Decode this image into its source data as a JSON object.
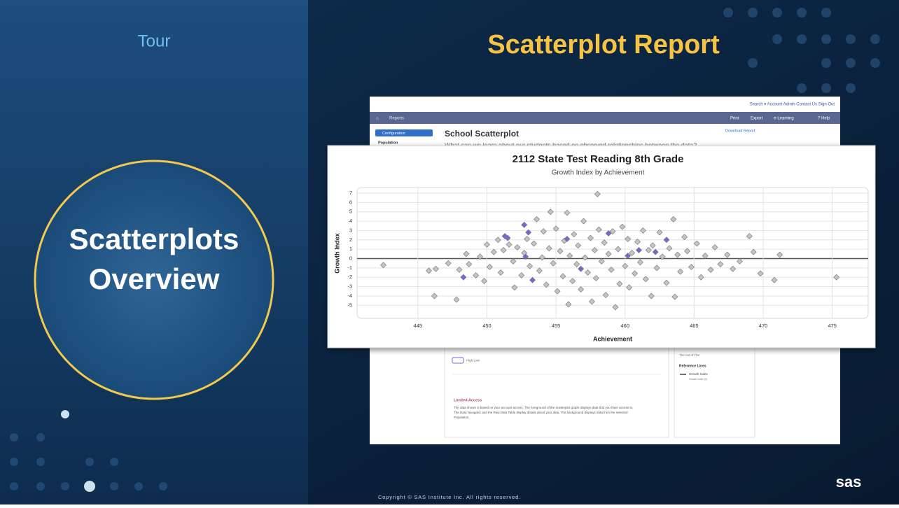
{
  "slide": {
    "section": "Tour",
    "title": "Scatterplot Report",
    "circle_text": [
      "Scatterplots",
      "Overview"
    ],
    "copyright": "Copyright © SAS Institute Inc. All rights reserved.",
    "logo": "sas"
  },
  "screenshot": {
    "top_links": "Search ▾  Account  Admin  Contact Us  Sign Out",
    "nav_left": "Reports",
    "nav_right": [
      "Print",
      "Export",
      "e-Learning",
      "? Help"
    ],
    "sidebar_button": "Configuration",
    "sidebar_item": "Population",
    "page_title": "School Scatterplot",
    "download": "Download Report",
    "question": "What can we learn about our students based on observed relationships between the data?",
    "legend_text": "High Low",
    "limited_access_title": "Limited Access",
    "limited_access_text": [
      "The data shown is based on your account access. The foreground of the scatterplot graph displays data that you have access to.",
      "The Data Navigator and the Raw Data Table display details about your data. The background displays data from the selected",
      "Population."
    ],
    "side_note": "The out of The",
    "reference_title": "Reference Lines",
    "reference_item": "Growth Index",
    "reference_sub": "Growth Index (0)"
  },
  "chart_data": {
    "type": "scatter",
    "title": "2112 State Test Reading 8th Grade",
    "subtitle": "Growth Index by Achievement",
    "x_label": "Achievement",
    "y_label": "Growth Index",
    "xlim": [
      440.6,
      477.6
    ],
    "ylim": [
      -6.4,
      7.6
    ],
    "xticks": [
      445,
      450,
      455,
      460,
      465,
      470,
      475
    ],
    "yticks": [
      -5,
      -4,
      -3,
      -2,
      -1,
      0,
      1,
      2,
      3,
      4,
      5,
      6,
      7
    ],
    "grid": true,
    "series": [
      {
        "color": "#c4c4c4",
        "x": [
          442.5,
          445.8,
          446.3,
          446.2,
          447.8,
          447.2,
          448,
          448.5,
          448.7,
          449.2,
          449.5,
          449.8,
          450,
          450.2,
          450.5,
          450.8,
          451,
          451.2,
          451.6,
          451.9,
          452,
          452.2,
          452.5,
          452.7,
          452.9,
          453.1,
          453.4,
          453.6,
          453.8,
          454,
          454.1,
          454.3,
          454.5,
          454.6,
          454.8,
          455,
          455.1,
          455.3,
          455.5,
          455.6,
          455.8,
          455.9,
          456,
          456.2,
          456.3,
          456.5,
          456.6,
          456.8,
          457,
          457.1,
          457.3,
          457.5,
          457.6,
          457.8,
          457.9,
          458,
          458.1,
          458.3,
          458.5,
          458.6,
          458.8,
          459,
          459.1,
          459.3,
          459.5,
          459.6,
          459.8,
          460,
          460.2,
          460.3,
          460.5,
          460.7,
          460.9,
          461.1,
          461.3,
          461.5,
          461.7,
          461.9,
          462,
          462.3,
          462.5,
          462.7,
          463,
          463.2,
          463.5,
          463.6,
          463.8,
          464,
          464.3,
          464.5,
          464.8,
          465.2,
          465.5,
          465.8,
          466.2,
          466.5,
          466.9,
          467.4,
          467.8,
          468.3,
          469,
          469.3,
          469.8,
          470.8,
          471.2,
          475.3
        ],
        "values": [
          -0.7,
          -1.3,
          -1.1,
          -4,
          -4.4,
          -0.5,
          -1.2,
          0.5,
          -0.6,
          -1.8,
          0.2,
          -2.4,
          1.5,
          -0.9,
          0.7,
          2,
          -1.5,
          0.9,
          1.5,
          -0.3,
          -3.1,
          1.2,
          -1.8,
          0.6,
          2.1,
          -0.8,
          1.6,
          4.2,
          -1.3,
          0.1,
          2.9,
          -2.8,
          1.1,
          5,
          -0.5,
          3.2,
          -3.5,
          0.8,
          -1.9,
          1.9,
          4.9,
          -4.9,
          0.3,
          -2.4,
          2.6,
          -0.6,
          1.4,
          -3.3,
          4,
          0.1,
          -1.5,
          2.2,
          -4.6,
          0.9,
          -2.1,
          6.9,
          3.1,
          -0.3,
          1.7,
          -3.9,
          0.5,
          -1.2,
          2.9,
          -5.2,
          1,
          -2.7,
          3.4,
          -0.8,
          2.1,
          -3.1,
          0.6,
          -1.6,
          1.8,
          -0.4,
          3,
          -2.2,
          0.9,
          -4,
          1.4,
          -1,
          2.8,
          0.2,
          -2.6,
          1.1,
          4.2,
          -4.1,
          0.4,
          -1.4,
          2.3,
          0.8,
          -0.9,
          1.6,
          -2,
          0.3,
          -1.2,
          1.2,
          -0.6,
          0.4,
          -1.1,
          -0.3,
          2.4,
          0.7,
          -1.6,
          -2.3,
          0.4,
          -2
        ]
      },
      {
        "color": "#7b63d6",
        "x": [
          451.3,
          451.5,
          452.7,
          453,
          453.3,
          452.8,
          448.3,
          455.8,
          456.8,
          458.8,
          460.2,
          461,
          462.2,
          463
        ],
        "values": [
          2.4,
          2.2,
          3.6,
          2.8,
          -2.3,
          0.2,
          -2,
          2.1,
          -1.1,
          2.7,
          0.3,
          0.9,
          0.7,
          2
        ]
      }
    ]
  }
}
